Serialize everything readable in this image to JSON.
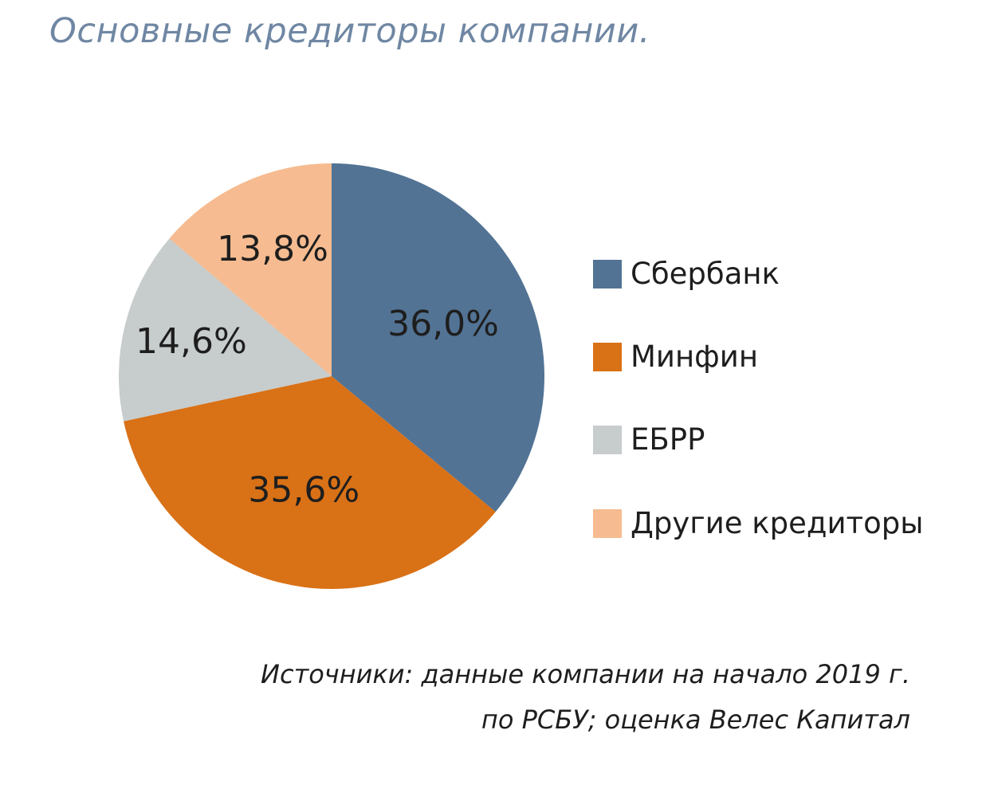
{
  "title": "Основные кредиторы компании.",
  "chart_data": {
    "type": "pie",
    "categories": [
      "Сбербанк",
      "Минфин",
      "ЕБРР",
      "Другие кредиторы"
    ],
    "values": [
      36.0,
      35.6,
      14.6,
      13.8
    ],
    "value_labels": [
      "36,0%",
      "35,6%",
      "14,6%",
      "13,8%"
    ],
    "colors": [
      "#527394",
      "#d97116",
      "#c7cccc",
      "#f6bb90"
    ],
    "start_angle_deg": 0,
    "direction": "clockwise",
    "legend_position": "right"
  },
  "source": {
    "line1": "Источники: данные компании на начало 2019 г.",
    "line2": "по РСБУ; оценка Велес Капитал"
  }
}
